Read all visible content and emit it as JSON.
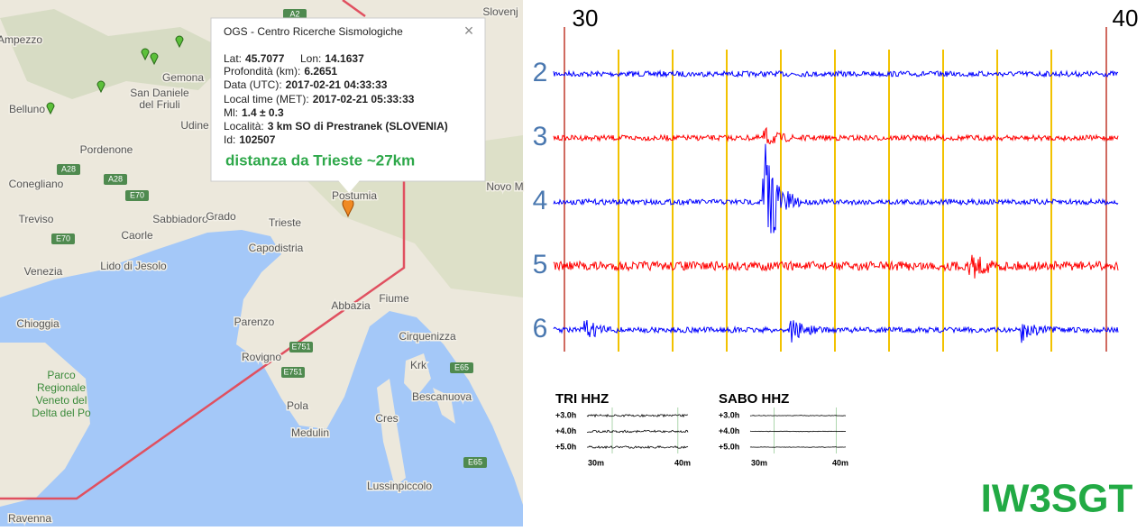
{
  "map": {
    "labels": [
      "Ampezzo",
      "Gemona",
      "San Daniele",
      "del Friuli",
      "Belluno",
      "Udine",
      "Pordenone",
      "Conegliano",
      "Treviso",
      "Sabbiadoro",
      "Grado",
      "Caorle",
      "Lido di Jesolo",
      "Venezia",
      "Trieste",
      "Capodistria",
      "Postumia",
      "Novo M",
      "Slovenj",
      "Fiume",
      "Abbazia",
      "Parenzo",
      "Rovigno",
      "Pola",
      "Medulin",
      "Cirquenizza",
      "Krk",
      "Bescanuova",
      "Cres",
      "Chioggia",
      "Lussinpiccolo",
      "Ravenna"
    ],
    "park": [
      "Parco",
      "Regionale",
      "Veneto del",
      "Delta del Po"
    ],
    "roads": [
      "A2",
      "A28",
      "A28",
      "E70",
      "E70",
      "E751",
      "E751",
      "E65",
      "E65"
    ]
  },
  "popup": {
    "title": "OGS - Centro Ricerche Sismologiche",
    "close": "×",
    "fields": [
      {
        "label": "Lat:",
        "value": "45.7077"
      },
      {
        "label": "Lon:",
        "value": "14.1637"
      },
      {
        "label": "Profondità (km):",
        "value": "6.2651"
      },
      {
        "label": "Data (UTC):",
        "value": "2017-02-21 04:33:33"
      },
      {
        "label": "Local time (MET):",
        "value": "2017-02-21 05:33:33"
      },
      {
        "label": "Ml:",
        "value": "1.4 ± 0.3"
      },
      {
        "label": "Località:",
        "value": "3 km SO di Prestranek (SLOVENIA)"
      },
      {
        "label": "Id:",
        "value": "102507"
      }
    ],
    "note": "distanza da Trieste ~27km"
  },
  "seismogram": {
    "start": "30",
    "end": "40",
    "rows": [
      "2",
      "3",
      "4",
      "5",
      "6"
    ]
  },
  "stations": [
    {
      "name": "TRI HHZ",
      "rows": [
        "+3.0h",
        "+4.0h",
        "+5.0h"
      ],
      "x_start": "30m",
      "x_end": "40m"
    },
    {
      "name": "SABO HHZ",
      "rows": [
        "+3.0h",
        "+4.0h",
        "+5.0h"
      ],
      "x_start": "30m",
      "x_end": "40m"
    }
  ],
  "callsign": "IW3SGT"
}
